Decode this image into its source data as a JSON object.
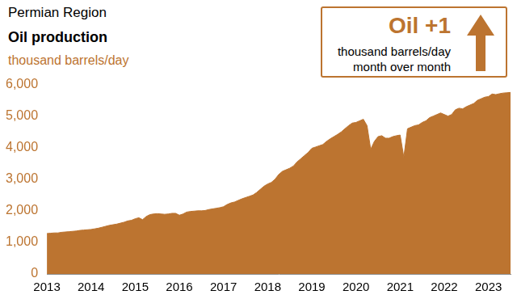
{
  "chart_data": {
    "type": "area",
    "subtitle": "Permian Region",
    "title": "Oil production",
    "y_label": "thousand barrels/day",
    "annotation": {
      "heading": "Oil +1",
      "lines": [
        "thousand barrels/day",
        "month over month"
      ]
    },
    "categories": [
      "2013",
      null,
      null,
      null,
      null,
      null,
      null,
      null,
      null,
      null,
      null,
      null,
      "2014",
      null,
      null,
      null,
      null,
      null,
      null,
      null,
      null,
      null,
      null,
      null,
      "2015",
      null,
      null,
      null,
      null,
      null,
      null,
      null,
      null,
      null,
      null,
      null,
      "2016",
      null,
      null,
      null,
      null,
      null,
      null,
      null,
      null,
      null,
      null,
      null,
      "2017",
      null,
      null,
      null,
      null,
      null,
      null,
      null,
      null,
      null,
      null,
      null,
      "2018",
      null,
      null,
      null,
      null,
      null,
      null,
      null,
      null,
      null,
      null,
      null,
      "2019",
      null,
      null,
      null,
      null,
      null,
      null,
      null,
      null,
      null,
      null,
      null,
      "2020",
      null,
      null,
      null,
      null,
      null,
      null,
      null,
      null,
      null,
      null,
      null,
      "2021",
      null,
      null,
      null,
      null,
      null,
      null,
      null,
      null,
      null,
      null,
      null,
      "2022",
      null,
      null,
      null,
      null,
      null,
      null,
      null,
      null,
      null,
      null,
      null,
      "2023",
      null,
      null,
      null,
      null,
      null,
      null
    ],
    "values": [
      1280,
      1290,
      1300,
      1300,
      1320,
      1330,
      1340,
      1350,
      1360,
      1380,
      1390,
      1400,
      1410,
      1430,
      1450,
      1480,
      1510,
      1540,
      1560,
      1580,
      1610,
      1640,
      1680,
      1700,
      1750,
      1780,
      1720,
      1820,
      1880,
      1900,
      1910,
      1900,
      1890,
      1900,
      1920,
      1920,
      1860,
      1900,
      1960,
      1980,
      1990,
      2000,
      2000,
      2010,
      2040,
      2060,
      2080,
      2100,
      2130,
      2200,
      2250,
      2280,
      2330,
      2380,
      2420,
      2460,
      2500,
      2580,
      2680,
      2780,
      2850,
      2900,
      3000,
      3150,
      3250,
      3300,
      3350,
      3420,
      3550,
      3650,
      3750,
      3850,
      3980,
      4020,
      4060,
      4100,
      4200,
      4280,
      4350,
      4420,
      4500,
      4600,
      4700,
      4780,
      4800,
      4850,
      4900,
      4700,
      3950,
      4200,
      4350,
      4380,
      4300,
      4300,
      4350,
      4380,
      4400,
      3700,
      4600,
      4650,
      4700,
      4720,
      4800,
      4850,
      4950,
      5000,
      5050,
      5100,
      5050,
      5000,
      5050,
      5200,
      5250,
      5230,
      5300,
      5350,
      5400,
      5500,
      5550,
      5600,
      5620,
      5700,
      5680,
      5710,
      5730,
      5740,
      5750
    ],
    "color": "#bc7430",
    "ylim": [
      0,
      6000
    ],
    "yticks": [
      0,
      {
        "value": 1000,
        "label": "1,000"
      },
      {
        "value": 2000,
        "label": "2,000"
      },
      {
        "value": 3000,
        "label": "3,000"
      },
      {
        "value": 4000,
        "label": "4,000"
      },
      {
        "value": 5000,
        "label": "5,000"
      },
      {
        "value": 6000,
        "label": "6,000"
      }
    ],
    "grid": false
  }
}
